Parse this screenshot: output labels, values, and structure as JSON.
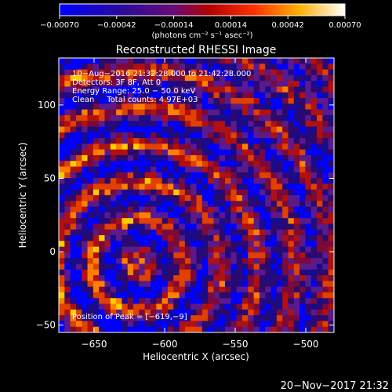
{
  "chart_data": {
    "type": "heatmap",
    "title": "Reconstructed RHESSI Image",
    "xlabel": "Heliocentric X (arcsec)",
    "ylabel": "Heliocentric Y (arcsec)",
    "xlim": [
      -675,
      -480
    ],
    "ylim": [
      -55,
      132
    ],
    "xticks": [
      -650,
      -600,
      -550,
      -500
    ],
    "yticks": [
      -50,
      0,
      50,
      100
    ],
    "xtick_labels": [
      "−650",
      "−600",
      "−550",
      "−500"
    ],
    "ytick_labels": [
      "−50",
      "0",
      "50",
      "100"
    ],
    "colorbar": {
      "min": -0.0007,
      "max": 0.0007,
      "ticks": [
        -0.0007,
        -0.00042,
        -0.00014,
        0.00014,
        0.00042,
        0.0007
      ],
      "tick_labels": [
        "−0.00070",
        "−0.00042",
        "−0.00014",
        "0.00014",
        "0.00042",
        "0.00070"
      ],
      "units_label": "(photons cm⁻² s⁻¹ asec⁻²)",
      "colormap": [
        "#0000ff",
        "#1a0a8c",
        "#2a0a6e",
        "#5a1a8c",
        "#7a0a3a",
        "#b01010",
        "#e04000",
        "#ff8000",
        "#ffcc00",
        "#ffffff"
      ]
    },
    "annotations": [
      "10−Aug−2016 21:32:28.000 to 21:42:28.000",
      "Detectors: 3F 8F, Att 0",
      "Energy Range: 25.0 − 50.0 keV",
      "Clean     Total counts: 4.97E+03"
    ],
    "peak_label": "Position of Peak = [−619,−9]",
    "peak": [
      -619,
      -9
    ]
  },
  "footer": {
    "timestamp": "20−Nov−2017 21:32"
  }
}
